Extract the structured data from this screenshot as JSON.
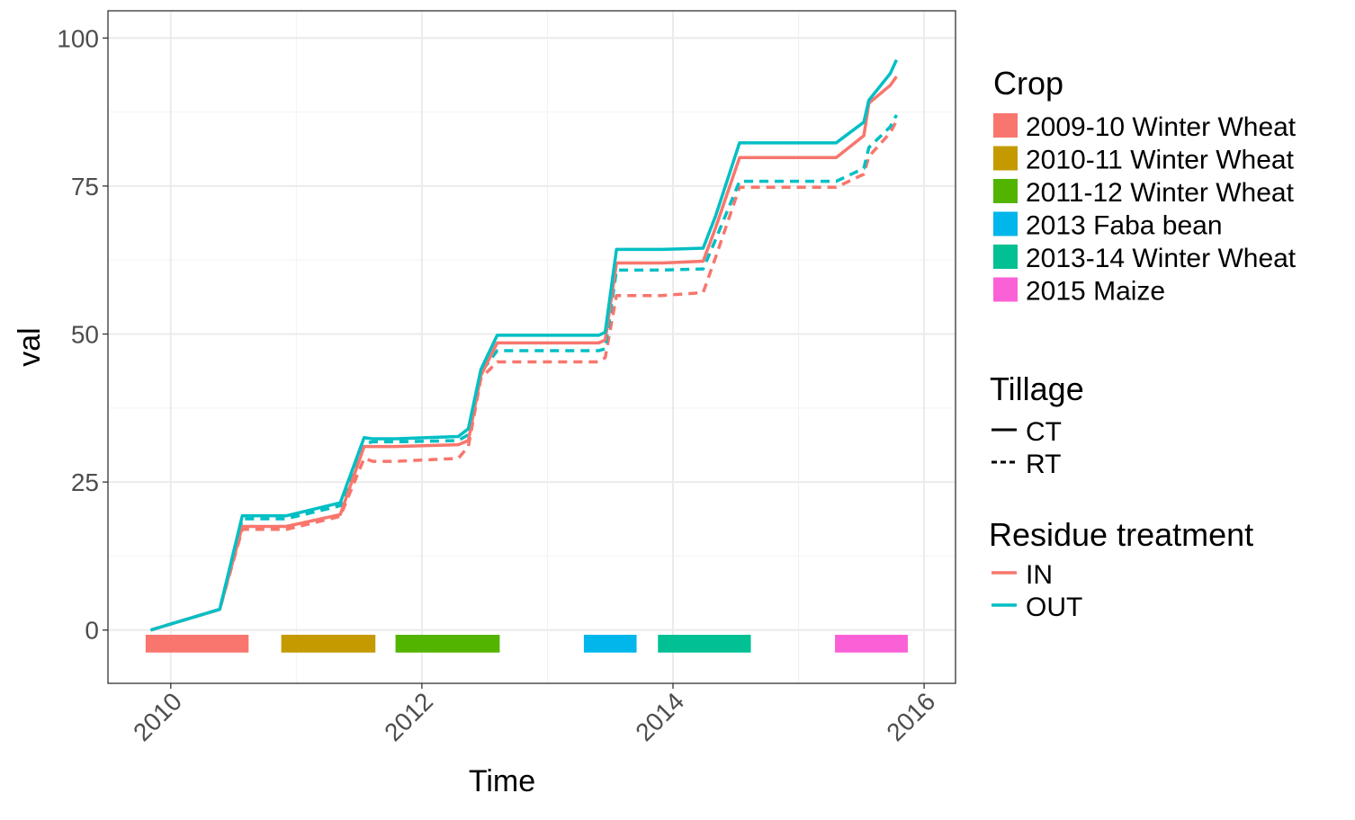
{
  "chart_data": {
    "type": "line",
    "xlabel": "Time",
    "ylabel": "val",
    "xlim": [
      2009.5,
      2016.25
    ],
    "ylim": [
      -9,
      104.6
    ],
    "grid": true,
    "legend_position": "right",
    "x_ticks": [
      2010,
      2012,
      2014,
      2016
    ],
    "x_tick_labels": [
      "2010",
      "2012",
      "2014",
      "2016"
    ],
    "y_ticks": [
      0,
      25,
      50,
      75,
      100
    ],
    "y_tick_labels": [
      "0",
      "25",
      "50",
      "75",
      "100"
    ],
    "x": [
      2009.84,
      2010.39,
      2010.57,
      2010.92,
      2011.35,
      2011.54,
      2011.61,
      2011.79,
      2012.29,
      2012.37,
      2012.47,
      2012.6,
      2013.41,
      2013.46,
      2013.55,
      2013.91,
      2014.24,
      2014.34,
      2014.53,
      2015.3,
      2015.52,
      2015.56,
      2015.73,
      2015.78
    ],
    "series": [
      {
        "tillage": "CT",
        "residue": "OUT",
        "values": [
          0,
          3.5,
          19.3,
          19.3,
          21.5,
          32.5,
          32.3,
          32.3,
          32.7,
          34,
          44,
          49.8,
          49.8,
          50.3,
          64.3,
          64.3,
          64.5,
          70,
          82.3,
          82.3,
          85.8,
          89.5,
          94,
          96.3
        ]
      },
      {
        "tillage": "CT",
        "residue": "IN",
        "values": [
          0,
          3.5,
          17.5,
          17.5,
          19.5,
          31,
          31,
          31,
          31.3,
          32,
          43,
          48.5,
          48.5,
          49,
          62,
          62,
          62.3,
          68,
          79.8,
          79.8,
          83.5,
          89,
          92,
          93.5
        ]
      },
      {
        "tillage": "RT",
        "residue": "OUT",
        "values": [
          0,
          3.5,
          18.8,
          18.8,
          21,
          31.5,
          31.8,
          31.8,
          32,
          33,
          43.5,
          47.2,
          47.2,
          47.5,
          60.8,
          60.8,
          61,
          66,
          75.8,
          75.8,
          78,
          81.5,
          85,
          87
        ]
      },
      {
        "tillage": "RT",
        "residue": "IN",
        "values": [
          0,
          3.5,
          17,
          17,
          19.2,
          29,
          28.5,
          28.5,
          29,
          31,
          42.5,
          45.3,
          45.3,
          46,
          56.5,
          56.5,
          57,
          63,
          74.8,
          74.8,
          77,
          80,
          84,
          86
        ]
      }
    ],
    "crop_periods": [
      {
        "label": "2009-10 Winter Wheat",
        "start": 2009.8,
        "end": 2010.62,
        "color": "#F8766D"
      },
      {
        "label": "2010-11 Winter Wheat",
        "start": 2010.88,
        "end": 2011.63,
        "color": "#C49A00"
      },
      {
        "label": "2011-12 Winter Wheat",
        "start": 2011.79,
        "end": 2012.62,
        "color": "#53B400"
      },
      {
        "label": "2013 Faba bean",
        "start": 2013.29,
        "end": 2013.71,
        "color": "#00B6EB"
      },
      {
        "label": "2013-14 Winter Wheat",
        "start": 2013.88,
        "end": 2014.62,
        "color": "#00C094"
      },
      {
        "label": "2015 Maize",
        "start": 2015.29,
        "end": 2015.87,
        "color": "#FB61D7"
      }
    ],
    "crop_bar_range": [
      -3.8,
      -0.8
    ],
    "legend": {
      "crop_title": "Crop",
      "tillage_title": "Tillage",
      "tillage": [
        {
          "label": "CT",
          "dash": "solid"
        },
        {
          "label": "RT",
          "dash": "dashed"
        }
      ],
      "residue_title": "Residue treatment",
      "residue": [
        {
          "label": "IN",
          "color": "#F8766D"
        },
        {
          "label": "OUT",
          "color": "#00BFC4"
        }
      ]
    }
  }
}
